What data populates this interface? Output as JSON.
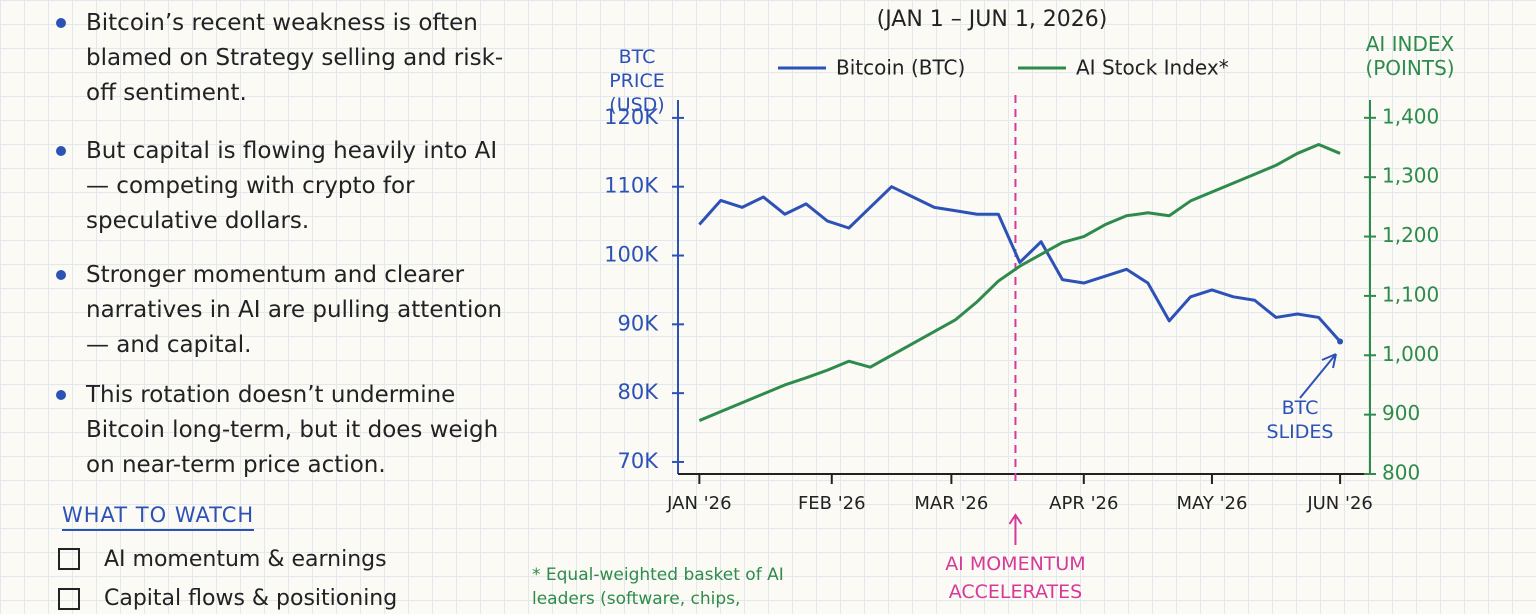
{
  "bullets": [
    "Bitcoin’s recent weakness is often blamed on Strategy selling and risk-off sentiment.",
    "But capital is flowing heavily into AI — competing with crypto for speculative dollars.",
    "Stronger momentum and clearer narratives in AI are pulling attention — and capital.",
    "This rotation doesn’t undermine Bitcoin long-term, but it does weigh on near-term price action."
  ],
  "watch": {
    "title": "WHAT TO WATCH",
    "items": [
      "AI momentum & earnings",
      "Capital flows & positioning"
    ]
  },
  "chart_data": {
    "type": "line",
    "subtitle": "(JAN 1 – JUN 1, 2026)",
    "y_label": "BTC PRICE (USD)",
    "y2_label": "AI INDEX (POINTS)",
    "xlim": [
      -1,
      31.4
    ],
    "xticks": [
      {
        "value": 0,
        "label": "JAN '26"
      },
      {
        "value": 6.2,
        "label": "FEB '26"
      },
      {
        "value": 11.8,
        "label": "MAR '26"
      },
      {
        "value": 18,
        "label": "APR '26"
      },
      {
        "value": 24,
        "label": "MAY '26"
      },
      {
        "value": 30,
        "label": "JUN '26"
      }
    ],
    "ylim": [
      68250,
      122600
    ],
    "yticks": [
      {
        "value": 70000,
        "label": "70K"
      },
      {
        "value": 80000,
        "label": "80K"
      },
      {
        "value": 90000,
        "label": "90K"
      },
      {
        "value": 100000,
        "label": "100K"
      },
      {
        "value": 110000,
        "label": "110K"
      },
      {
        "value": 120000,
        "label": "120K"
      }
    ],
    "y2lim": [
      800,
      1430
    ],
    "y2ticks": [
      {
        "value": 800,
        "label": "800"
      },
      {
        "value": 900,
        "label": "900"
      },
      {
        "value": 1000,
        "label": "1,000"
      },
      {
        "value": 1100,
        "label": "1,100"
      },
      {
        "value": 1200,
        "label": "1,200"
      },
      {
        "value": 1300,
        "label": "1,300"
      },
      {
        "value": 1400,
        "label": "1,400"
      }
    ],
    "series": [
      {
        "name": "Bitcoin (BTC)",
        "color": "#2d52b5",
        "values": [
          104500,
          108000,
          107000,
          108500,
          106000,
          107500,
          105000,
          104000,
          107000,
          110000,
          108500,
          107000,
          106500,
          106000,
          106000,
          99000,
          102000,
          96500,
          96000,
          97000,
          98000,
          96000,
          90500,
          94000,
          95000,
          94000,
          93500,
          91000,
          91500,
          91000,
          87500
        ]
      },
      {
        "name": "AI Stock Index*",
        "color": "#2e8b4c",
        "axis": "y2",
        "values": [
          890,
          905,
          920,
          935,
          950,
          962,
          975,
          990,
          980,
          1000,
          1020,
          1040,
          1060,
          1090,
          1125,
          1150,
          1170,
          1190,
          1200,
          1220,
          1235,
          1240,
          1235,
          1260,
          1275,
          1290,
          1305,
          1320,
          1340,
          1355,
          1340
        ]
      }
    ],
    "annotations": [
      {
        "text": "AI MOMENTUM ACCELERATES",
        "x": 14.8
      },
      {
        "text": "BTC SLIDES"
      }
    ],
    "footnote": "* Equal-weighted basket of AI leaders (software, chips,"
  }
}
